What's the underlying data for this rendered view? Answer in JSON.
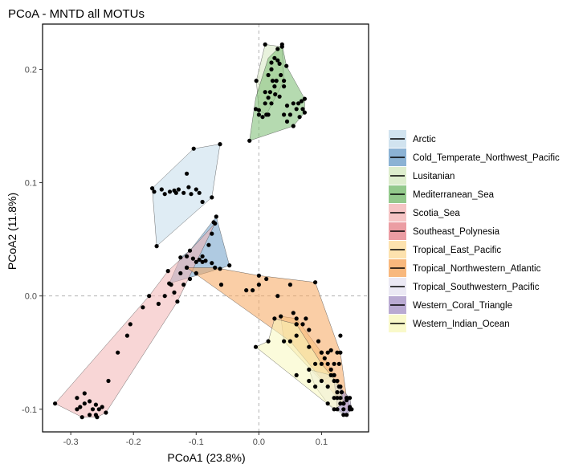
{
  "chart_data": {
    "type": "scatter",
    "title": "PCoA - MNTD all MOTUs",
    "xlabel": "PCoA1 (23.8%)",
    "ylabel": "PCoA2 (11.8%)",
    "xlim": [
      -0.345,
      0.175
    ],
    "ylim": [
      -0.12,
      0.24
    ],
    "x_ticks": [
      -0.3,
      -0.2,
      -0.1,
      0.0,
      0.1
    ],
    "x_tick_labels": [
      "-0.3",
      "-0.2",
      "-0.1",
      "0.0",
      "0.1"
    ],
    "y_ticks": [
      -0.1,
      0.0,
      0.1,
      0.2
    ],
    "y_tick_labels": [
      "-0.1",
      "0.0",
      "0.1",
      "0.2"
    ],
    "reference_lines": {
      "x": 0.0,
      "y": 0.0
    },
    "grid": false,
    "legend_position": "right",
    "series": [
      {
        "name": "Arctic",
        "color": "#c5dceb",
        "hull": [
          [
            -0.104,
            0.13
          ],
          [
            -0.062,
            0.134
          ],
          [
            -0.075,
            0.087
          ],
          [
            -0.163,
            0.044
          ],
          [
            -0.17,
            0.095
          ]
        ],
        "points": [
          [
            -0.104,
            0.13
          ],
          [
            -0.062,
            0.134
          ],
          [
            -0.075,
            0.087
          ],
          [
            -0.163,
            0.044
          ],
          [
            -0.17,
            0.095
          ],
          [
            -0.167,
            0.092
          ],
          [
            -0.15,
            0.09
          ],
          [
            -0.142,
            0.092
          ],
          [
            -0.135,
            0.093
          ],
          [
            -0.128,
            0.094
          ],
          [
            -0.12,
            0.091
          ],
          [
            -0.112,
            0.096
          ],
          [
            -0.108,
            0.09
          ],
          [
            -0.1,
            0.094
          ],
          [
            -0.095,
            0.091
          ],
          [
            -0.09,
            0.083
          ],
          [
            -0.115,
            0.108
          ],
          [
            -0.132,
            0.091
          ],
          [
            -0.155,
            0.094
          ]
        ]
      },
      {
        "name": "Cold_Temperate_Northwest_Pacific",
        "color": "#6e9fc9",
        "hull": [
          [
            -0.068,
            0.07
          ],
          [
            -0.047,
            0.027
          ],
          [
            -0.062,
            0.024
          ],
          [
            -0.143,
            0.011
          ],
          [
            -0.125,
            0.034
          ],
          [
            -0.11,
            0.04
          ]
        ],
        "points": [
          [
            -0.068,
            0.07
          ],
          [
            -0.072,
            0.065
          ],
          [
            -0.047,
            0.027
          ],
          [
            -0.062,
            0.024
          ],
          [
            -0.143,
            0.011
          ],
          [
            -0.125,
            0.034
          ],
          [
            -0.11,
            0.04
          ],
          [
            -0.115,
            0.035
          ],
          [
            -0.105,
            0.033
          ],
          [
            -0.095,
            0.032
          ],
          [
            -0.085,
            0.031
          ],
          [
            -0.075,
            0.029
          ],
          [
            -0.1,
            0.03
          ],
          [
            -0.09,
            0.035
          ]
        ]
      },
      {
        "name": "Lusitanian",
        "color": "#d5e8c1",
        "hull": [
          [
            0.037,
            0.22
          ],
          [
            0.01,
            0.222
          ],
          [
            -0.004,
            0.19
          ],
          [
            0.0,
            0.164
          ],
          [
            0.012,
            0.16
          ],
          [
            0.04,
            0.19
          ]
        ],
        "points": [
          [
            0.037,
            0.22
          ],
          [
            0.01,
            0.222
          ],
          [
            -0.004,
            0.19
          ],
          [
            0.0,
            0.164
          ],
          [
            0.012,
            0.16
          ],
          [
            0.04,
            0.19
          ],
          [
            0.02,
            0.2
          ],
          [
            0.025,
            0.185
          ],
          [
            0.015,
            0.175
          ],
          [
            0.03,
            0.208
          ]
        ]
      },
      {
        "name": "Mediterranean_Sea",
        "color": "#78bc6f",
        "hull": [
          [
            0.037,
            0.222
          ],
          [
            0.044,
            0.203
          ],
          [
            0.073,
            0.174
          ],
          [
            0.073,
            0.162
          ],
          [
            0.055,
            0.15
          ],
          [
            -0.015,
            0.137
          ],
          [
            -0.005,
            0.175
          ],
          [
            0.015,
            0.21
          ]
        ],
        "points": [
          [
            0.037,
            0.222
          ],
          [
            0.03,
            0.218
          ],
          [
            0.02,
            0.206
          ],
          [
            0.025,
            0.21
          ],
          [
            0.033,
            0.205
          ],
          [
            0.044,
            0.203
          ],
          [
            0.015,
            0.195
          ],
          [
            0.022,
            0.19
          ],
          [
            0.028,
            0.19
          ],
          [
            0.035,
            0.195
          ],
          [
            0.04,
            0.185
          ],
          [
            0.01,
            0.18
          ],
          [
            0.018,
            0.18
          ],
          [
            0.026,
            0.178
          ],
          [
            0.033,
            0.176
          ],
          [
            0.01,
            0.17
          ],
          [
            0.02,
            0.17
          ],
          [
            0.045,
            0.168
          ],
          [
            0.055,
            0.17
          ],
          [
            0.063,
            0.17
          ],
          [
            0.068,
            0.172
          ],
          [
            0.073,
            0.174
          ],
          [
            0.073,
            0.162
          ],
          [
            0.06,
            0.165
          ],
          [
            0.05,
            0.16
          ],
          [
            0.04,
            0.16
          ],
          [
            0.07,
            0.165
          ],
          [
            0.065,
            0.158
          ],
          [
            0.055,
            0.15
          ],
          [
            0.045,
            0.154
          ],
          [
            0.0,
            0.16
          ],
          [
            0.006,
            0.158
          ],
          [
            -0.005,
            0.165
          ],
          [
            -0.015,
            0.137
          ],
          [
            0.015,
            0.16
          ]
        ]
      },
      {
        "name": "Scotia_Sea",
        "color": "#f3b5b5",
        "hull": [
          [
            -0.07,
            0.064
          ],
          [
            -0.13,
            -0.005
          ],
          [
            -0.244,
            -0.103
          ],
          [
            -0.258,
            -0.107
          ],
          [
            -0.282,
            -0.107
          ],
          [
            -0.325,
            -0.095
          ],
          [
            -0.175,
            0.0
          ],
          [
            -0.145,
            0.022
          ],
          [
            -0.11,
            0.04
          ]
        ],
        "points": [
          [
            -0.07,
            0.064
          ],
          [
            -0.13,
            -0.005
          ],
          [
            -0.244,
            -0.103
          ],
          [
            -0.258,
            -0.107
          ],
          [
            -0.282,
            -0.107
          ],
          [
            -0.325,
            -0.095
          ],
          [
            -0.175,
            0.0
          ],
          [
            -0.145,
            0.022
          ],
          [
            -0.29,
            -0.09
          ],
          [
            -0.285,
            -0.098
          ],
          [
            -0.278,
            -0.095
          ],
          [
            -0.27,
            -0.093
          ],
          [
            -0.265,
            -0.1
          ],
          [
            -0.26,
            -0.096
          ],
          [
            -0.255,
            -0.1
          ],
          [
            -0.25,
            -0.098
          ],
          [
            -0.278,
            -0.086
          ],
          [
            -0.29,
            -0.1
          ],
          [
            -0.205,
            -0.025
          ],
          [
            -0.185,
            -0.01
          ],
          [
            -0.16,
            -0.007
          ],
          [
            -0.15,
            0.0
          ],
          [
            -0.135,
            0.003
          ],
          [
            -0.12,
            0.01
          ],
          [
            -0.11,
            0.015
          ],
          [
            -0.1,
            0.02
          ],
          [
            -0.09,
            0.03
          ],
          [
            -0.08,
            0.045
          ],
          [
            -0.075,
            0.055
          ],
          [
            -0.115,
            0.025
          ],
          [
            -0.125,
            0.02
          ],
          [
            -0.14,
            0.01
          ],
          [
            -0.21,
            -0.035
          ],
          [
            -0.225,
            -0.05
          ],
          [
            -0.24,
            -0.075
          ],
          [
            -0.27,
            -0.105
          ],
          [
            -0.26,
            -0.105
          ]
        ]
      },
      {
        "name": "Southeast_Polynesia",
        "color": "#e6848c",
        "hull": [
          [
            0.14,
            -0.09
          ],
          [
            0.145,
            -0.1
          ],
          [
            0.135,
            -0.1
          ]
        ],
        "points": [
          [
            0.14,
            -0.09
          ],
          [
            0.145,
            -0.1
          ],
          [
            0.135,
            -0.1
          ]
        ]
      },
      {
        "name": "Tropical_East_Pacific",
        "color": "#fcdb9a",
        "hull": [
          [
            0.035,
            -0.018
          ],
          [
            0.06,
            -0.02
          ],
          [
            0.1,
            -0.05
          ],
          [
            0.12,
            -0.07
          ],
          [
            0.1,
            -0.075
          ],
          [
            0.04,
            -0.04
          ]
        ],
        "points": [
          [
            0.035,
            -0.018
          ],
          [
            0.06,
            -0.02
          ],
          [
            0.1,
            -0.05
          ],
          [
            0.12,
            -0.07
          ],
          [
            0.1,
            -0.075
          ],
          [
            0.04,
            -0.04
          ],
          [
            0.06,
            -0.035
          ],
          [
            0.08,
            -0.045
          ]
        ]
      },
      {
        "name": "Tropical_Northwestern_Atlantic",
        "color": "#f6a65d",
        "hull": [
          [
            -0.115,
            0.025
          ],
          [
            -0.07,
            0.025
          ],
          [
            0.0,
            0.018
          ],
          [
            0.09,
            0.012
          ],
          [
            0.13,
            -0.05
          ],
          [
            0.14,
            -0.09
          ],
          [
            0.135,
            -0.095
          ],
          [
            0.125,
            -0.09
          ],
          [
            0.05,
            -0.04
          ]
        ],
        "points": [
          [
            -0.115,
            0.025
          ],
          [
            -0.07,
            0.025
          ],
          [
            0.0,
            0.018
          ],
          [
            0.012,
            0.015
          ],
          [
            -0.01,
            0.005
          ],
          [
            0.05,
            0.01
          ],
          [
            0.09,
            0.012
          ],
          [
            0.13,
            -0.035
          ],
          [
            0.13,
            -0.05
          ],
          [
            0.14,
            -0.09
          ],
          [
            0.135,
            -0.095
          ],
          [
            0.125,
            -0.09
          ],
          [
            0.05,
            -0.04
          ],
          [
            0.07,
            -0.025
          ],
          [
            0.08,
            -0.03
          ],
          [
            0.095,
            -0.04
          ],
          [
            0.1,
            -0.05
          ],
          [
            0.105,
            -0.055
          ],
          [
            0.11,
            -0.06
          ],
          [
            0.115,
            -0.065
          ],
          [
            0.12,
            -0.07
          ],
          [
            0.125,
            -0.075
          ],
          [
            0.128,
            -0.08
          ],
          [
            0.132,
            -0.085
          ],
          [
            0.12,
            -0.06
          ],
          [
            0.125,
            -0.05
          ],
          [
            0.128,
            -0.06
          ],
          [
            0.11,
            -0.05
          ],
          [
            0.115,
            -0.048
          ],
          [
            -0.06,
            0.01
          ],
          [
            -0.02,
            0.005
          ],
          [
            0.0,
            0.01
          ],
          [
            0.03,
            0.0
          ],
          [
            0.055,
            -0.015
          ],
          [
            0.06,
            -0.025
          ],
          [
            0.075,
            -0.02
          ]
        ]
      },
      {
        "name": "Tropical_Southwestern_Pacific",
        "color": "#e6e4f1",
        "hull": [
          [
            0.08,
            -0.065
          ],
          [
            0.115,
            -0.07
          ],
          [
            0.14,
            -0.09
          ],
          [
            0.145,
            -0.1
          ],
          [
            0.135,
            -0.105
          ],
          [
            0.11,
            -0.095
          ],
          [
            0.09,
            -0.08
          ]
        ],
        "points": [
          [
            0.08,
            -0.065
          ],
          [
            0.115,
            -0.07
          ],
          [
            0.14,
            -0.09
          ],
          [
            0.145,
            -0.1
          ],
          [
            0.135,
            -0.105
          ],
          [
            0.11,
            -0.095
          ],
          [
            0.09,
            -0.08
          ],
          [
            0.125,
            -0.085
          ],
          [
            0.13,
            -0.095
          ],
          [
            0.12,
            -0.09
          ]
        ]
      },
      {
        "name": "Western_Coral_Triangle",
        "color": "#a895c7",
        "hull": [
          [
            0.12,
            -0.075
          ],
          [
            0.145,
            -0.09
          ],
          [
            0.148,
            -0.1
          ],
          [
            0.14,
            -0.105
          ],
          [
            0.125,
            -0.1
          ]
        ],
        "points": [
          [
            0.12,
            -0.075
          ],
          [
            0.145,
            -0.09
          ],
          [
            0.148,
            -0.1
          ],
          [
            0.14,
            -0.105
          ],
          [
            0.125,
            -0.1
          ],
          [
            0.135,
            -0.095
          ],
          [
            0.14,
            -0.092
          ],
          [
            0.13,
            -0.09
          ],
          [
            0.145,
            -0.098
          ]
        ]
      },
      {
        "name": "Western_Indian_Ocean",
        "color": "#f8f7bd",
        "hull": [
          [
            0.015,
            -0.04
          ],
          [
            0.025,
            -0.02
          ],
          [
            0.06,
            -0.025
          ],
          [
            0.1,
            -0.06
          ],
          [
            0.13,
            -0.08
          ],
          [
            0.135,
            -0.095
          ],
          [
            0.12,
            -0.1
          ],
          [
            -0.005,
            -0.045
          ]
        ],
        "points": [
          [
            0.015,
            -0.04
          ],
          [
            0.025,
            -0.02
          ],
          [
            0.06,
            -0.025
          ],
          [
            0.1,
            -0.06
          ],
          [
            0.13,
            -0.08
          ],
          [
            0.135,
            -0.095
          ],
          [
            0.12,
            -0.1
          ],
          [
            -0.005,
            -0.045
          ],
          [
            0.06,
            -0.07
          ],
          [
            0.08,
            -0.075
          ],
          [
            0.09,
            -0.06
          ],
          [
            0.11,
            -0.08
          ]
        ]
      }
    ]
  }
}
